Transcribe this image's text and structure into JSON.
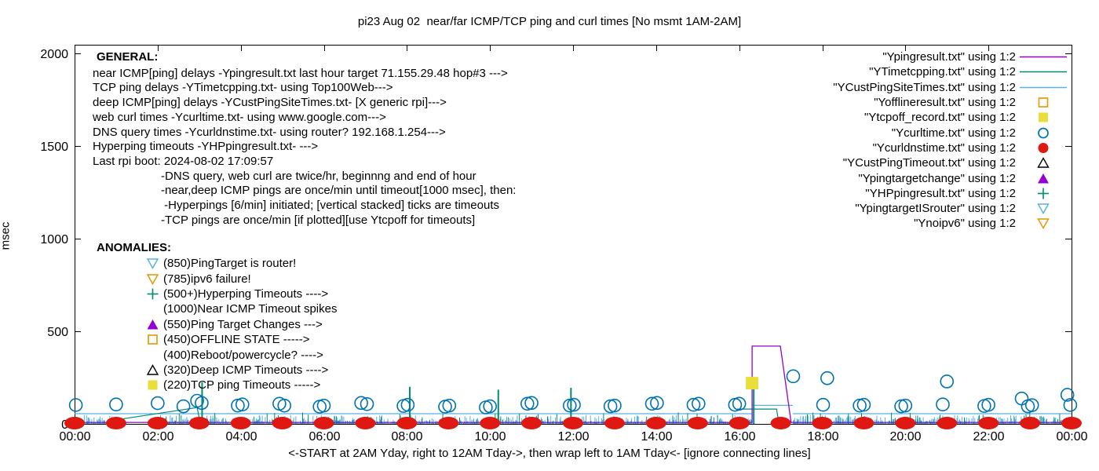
{
  "title": "pi23 Aug 02  near/far ICMP/TCP ping and curl times [No msmt 1AM-2AM]",
  "y_axis_label": "msec",
  "x_axis_caption": "<-START at 2AM Yday, right to 12AM Tday->, then wrap left to 1AM Tday<- [ignore connecting lines]",
  "colors": {
    "purple": "#9400d3",
    "teal": "#008c73",
    "lightblue": "#58b2e3",
    "orange": "#e69500",
    "yellow": "#e8df3a",
    "blue": "#0072b2",
    "red": "#e01812",
    "black": "#000000"
  },
  "general": {
    "heading": "GENERAL:",
    "lines": [
      "near ICMP[ping] delays -Ypingresult.txt last hour target 71.155.29.48 hop#3 --->",
      "TCP ping delays -YTimetcpping.txt- using Top100Web--->",
      "deep ICMP[ping] delays -YCustPingSiteTimes.txt- [X generic rpi]--->",
      "web curl times -Ycurltime.txt- using www.google.com--->",
      "DNS query times -Ycurldnstime.txt- using router? 192.168.1.254--->",
      "Hyperping timeouts -YHPpingresult.txt- --->",
      "Last rpi boot: 2024-08-02 17:09:57"
    ],
    "notes": [
      "-DNS query, web curl are twice/hr, beginnng and end of hour",
      "-near,deep ICMP pings are once/min until timeout[1000 msec], then:",
      " -Hyperpings [6/min] initiated; [vertical stacked] ticks are timeouts",
      "-TCP pings are once/min [if plotted][use Ytcpoff for timeouts]"
    ]
  },
  "anomalies": {
    "heading": "ANOMALIES:",
    "items": [
      {
        "marker": "triangle-down-open",
        "color": "lightblue",
        "label": "(850)PingTarget is router!"
      },
      {
        "marker": "triangle-down-open",
        "color": "orange",
        "label": "(785)ipv6 failure!"
      },
      {
        "marker": "plus",
        "color": "teal",
        "label": "(500+)Hyperping Timeouts ---->"
      },
      {
        "marker": "none",
        "color": "black",
        "label": "(1000)Near ICMP Timeout spikes"
      },
      {
        "marker": "triangle-filled",
        "color": "purple",
        "label": "(550)Ping Target Changes --->"
      },
      {
        "marker": "square-open",
        "color": "orange",
        "label": "(450)OFFLINE STATE ----->"
      },
      {
        "marker": "none",
        "color": "black",
        "label": "(400)Reboot/powercycle? ---->"
      },
      {
        "marker": "triangle-open",
        "color": "black",
        "label": "(320)Deep ICMP Timeouts ---->"
      },
      {
        "marker": "square-filled",
        "color": "yellow",
        "label": "(220)TCP ping Timeouts ----->"
      }
    ]
  },
  "legend": [
    {
      "label": "\"Ypingresult.txt\" using 1:2",
      "marker": "line",
      "color": "purple"
    },
    {
      "label": "\"YTimetcpping.txt\" using 1:2",
      "marker": "line",
      "color": "teal"
    },
    {
      "label": "\"YCustPingSiteTimes.txt\" using 1:2",
      "marker": "line",
      "color": "lightblue"
    },
    {
      "label": "\"Yofflineresult.txt\" using 1:2",
      "marker": "square-open",
      "color": "orange"
    },
    {
      "label": "\"Ytcpoff_record.txt\" using 1:2",
      "marker": "square-filled",
      "color": "yellow"
    },
    {
      "label": "\"Ycurltime.txt\" using 1:2",
      "marker": "circle-open",
      "color": "blue"
    },
    {
      "label": "\"Ycurldnstime.txt\" using 1:2",
      "marker": "circle-filled",
      "color": "red"
    },
    {
      "label": "\"YCustPingTimeout.txt\" using 1:2",
      "marker": "triangle-open",
      "color": "black"
    },
    {
      "label": "\"Ypingtargetchange\" using 1:2",
      "marker": "triangle-filled",
      "color": "purple"
    },
    {
      "label": "\"YHPpingresult.txt\" using 1:2",
      "marker": "plus",
      "color": "teal"
    },
    {
      "label": "\"YpingtargetISrouter\" using 1:2",
      "marker": "triangle-down-open",
      "color": "lightblue"
    },
    {
      "label": "\"Ynoipv6\" using 1:2",
      "marker": "triangle-down-open",
      "color": "orange"
    }
  ],
  "chart_data": {
    "type": "line",
    "xlabel_note": "time of day, 24h window",
    "ylabel": "msec",
    "xlim": [
      0,
      24
    ],
    "ylim": [
      0,
      2000
    ],
    "x_ticks": [
      "00:00",
      "02:00",
      "04:00",
      "06:00",
      "08:00",
      "10:00",
      "12:00",
      "14:00",
      "16:00",
      "18:00",
      "20:00",
      "22:00",
      "00:00"
    ],
    "y_ticks": [
      0,
      500,
      1000,
      1500,
      2000
    ],
    "grid": false,
    "no_measurement_windows_hours": [
      [
        1.0,
        2.0
      ],
      [
        16.31,
        17.29
      ]
    ],
    "series": [
      {
        "name": "YCustPingSiteTimes.txt",
        "render": "noise",
        "color": "lightblue",
        "noise": {
          "seed": 5,
          "step": 0.018,
          "base": 2,
          "max": 46,
          "pow": 2.6,
          "gaps": [
            [
              1.0,
              2.0
            ],
            [
              16.31,
              17.29
            ]
          ]
        },
        "lines": [
          [
            [
              0,
              55
            ],
            [
              16.31,
              55
            ]
          ],
          [
            [
              16.31,
              100
            ],
            [
              17.29,
              100
            ]
          ],
          [
            [
              17.29,
              55
            ],
            [
              24,
              55
            ]
          ]
        ]
      },
      {
        "name": "YTimetcpping.txt",
        "render": "noise",
        "color": "teal",
        "noise": {
          "seed": 11,
          "step": 0.045,
          "base": 1,
          "max": 62,
          "pow": 4.0,
          "gaps": [
            [
              1.0,
              2.0
            ],
            [
              16.31,
              17.29
            ]
          ]
        },
        "spikes": [
          [
            3.07,
            225
          ],
          [
            8.07,
            200
          ],
          [
            10.2,
            185
          ],
          [
            11.95,
            195
          ],
          [
            16.35,
            190
          ]
        ],
        "lines": [
          [
            [
              1.0,
              22
            ],
            [
              2.95,
              88
            ],
            [
              3.02,
              10
            ]
          ],
          [
            [
              15.95,
              80
            ],
            [
              16.9,
              80
            ],
            [
              16.95,
              8
            ]
          ]
        ]
      },
      {
        "name": "Ypingresult.txt",
        "render": "line",
        "color": "purple",
        "points": [
          [
            0,
            8
          ],
          [
            16.31,
            8
          ],
          [
            16.31,
            420
          ],
          [
            16.99,
            420
          ],
          [
            17.25,
            8
          ],
          [
            24,
            8
          ]
        ]
      },
      {
        "name": "Ytcpoff_record.txt",
        "render": "scatter",
        "marker": "square-filled",
        "color": "yellow",
        "points": [
          [
            16.31,
            220
          ]
        ]
      },
      {
        "name": "Ycurltime.txt",
        "render": "scatter",
        "marker": "circle-open",
        "color": "blue",
        "points": [
          [
            0.03,
            85
          ],
          [
            1.0,
            88
          ],
          [
            2.0,
            95
          ],
          [
            2.62,
            78
          ],
          [
            2.95,
            108
          ],
          [
            3.06,
            96
          ],
          [
            3.93,
            82
          ],
          [
            4.04,
            88
          ],
          [
            4.93,
            92
          ],
          [
            5.05,
            82
          ],
          [
            5.9,
            76
          ],
          [
            6.0,
            82
          ],
          [
            6.9,
            96
          ],
          [
            7.04,
            90
          ],
          [
            7.92,
            80
          ],
          [
            8.02,
            86
          ],
          [
            8.92,
            76
          ],
          [
            9.02,
            82
          ],
          [
            9.9,
            72
          ],
          [
            10.0,
            78
          ],
          [
            10.9,
            92
          ],
          [
            11.0,
            96
          ],
          [
            11.92,
            82
          ],
          [
            12.02,
            86
          ],
          [
            12.9,
            78
          ],
          [
            13.0,
            82
          ],
          [
            13.9,
            92
          ],
          [
            14.02,
            96
          ],
          [
            14.9,
            86
          ],
          [
            15.02,
            92
          ],
          [
            15.9,
            86
          ],
          [
            16.0,
            92
          ],
          [
            17.3,
            240
          ],
          [
            18.02,
            86
          ],
          [
            18.12,
            230
          ],
          [
            18.9,
            82
          ],
          [
            19.0,
            86
          ],
          [
            19.9,
            78
          ],
          [
            20.0,
            82
          ],
          [
            20.9,
            88
          ],
          [
            21.0,
            212
          ],
          [
            21.9,
            80
          ],
          [
            22.0,
            86
          ],
          [
            22.8,
            120
          ],
          [
            22.95,
            78
          ],
          [
            23.05,
            84
          ],
          [
            23.9,
            140
          ],
          [
            23.97,
            85
          ]
        ]
      },
      {
        "name": "Ycurldnstime.txt",
        "render": "scatter",
        "marker": "circle-filled-wide",
        "color": "red",
        "points": [
          [
            0,
            0
          ],
          [
            1,
            0
          ],
          [
            2,
            0
          ],
          [
            3,
            0
          ],
          [
            4,
            0
          ],
          [
            5,
            0
          ],
          [
            6,
            0
          ],
          [
            7,
            0
          ],
          [
            8,
            0
          ],
          [
            9,
            0
          ],
          [
            10,
            0
          ],
          [
            11,
            0
          ],
          [
            12,
            0
          ],
          [
            13,
            0
          ],
          [
            14,
            0
          ],
          [
            15,
            0
          ],
          [
            16,
            0
          ],
          [
            17,
            0
          ],
          [
            18,
            0
          ],
          [
            19,
            0
          ],
          [
            20,
            0
          ],
          [
            21,
            0
          ],
          [
            22,
            0
          ],
          [
            23,
            0
          ],
          [
            24,
            0
          ]
        ]
      }
    ]
  }
}
